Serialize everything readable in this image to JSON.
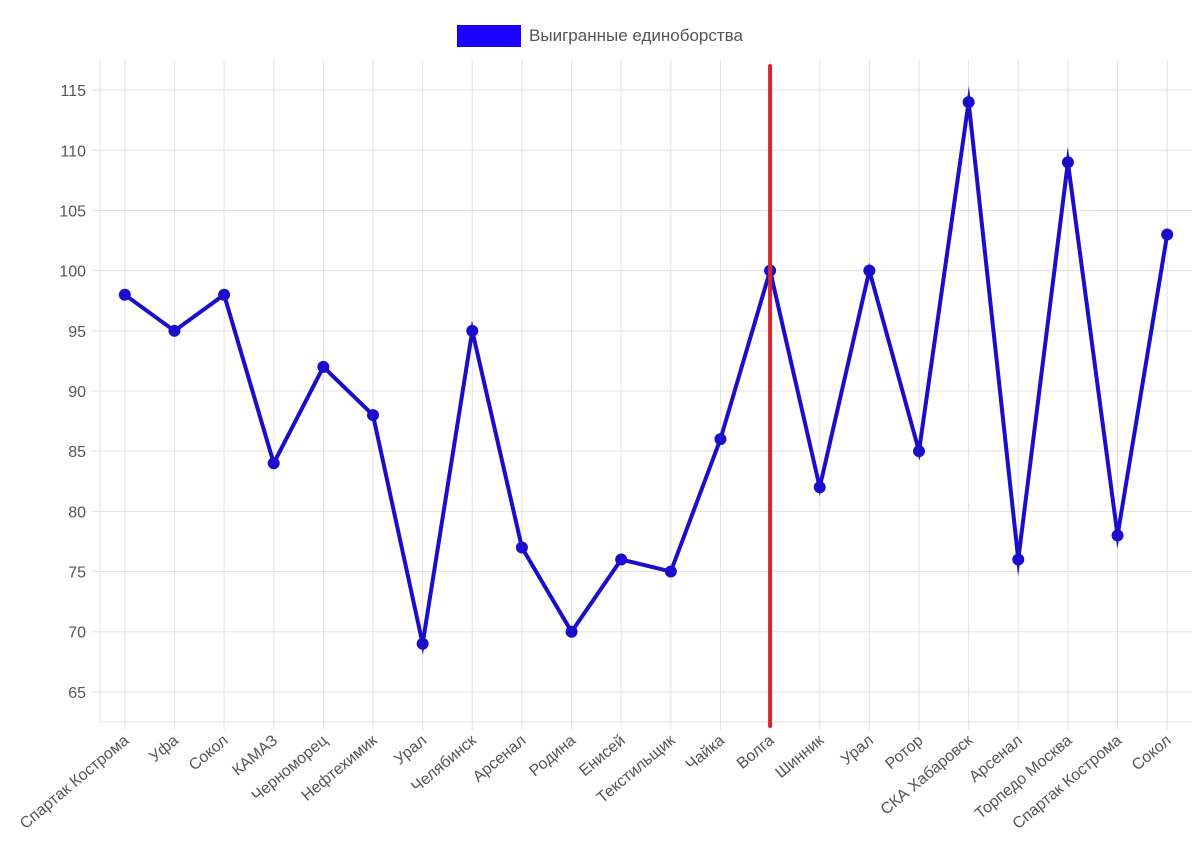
{
  "chart_data": {
    "type": "line",
    "categories": [
      "Спартак Кострома",
      "Уфа",
      "Сокол",
      "КАМАЗ",
      "Черноморец",
      "Нефтехимик",
      "Урал",
      "Челябинск",
      "Арсенал",
      "Родина",
      "Енисей",
      "Текстильщик",
      "Чайка",
      "Волга",
      "Шинник",
      "Урал",
      "Ротор",
      "СКА Хабаровск",
      "Арсенал",
      "Торпедо Москва",
      "Спартак Кострома",
      "Сокол"
    ],
    "series": [
      {
        "name": "Выигранные единоборства",
        "values": [
          98,
          95,
          98,
          84,
          92,
          88,
          69,
          95,
          77,
          70,
          76,
          75,
          86,
          100,
          82,
          100,
          85,
          114,
          76,
          109,
          78,
          103
        ]
      }
    ],
    "ylim": [
      62.5,
      117.5
    ],
    "yticks": [
      65,
      70,
      75,
      80,
      85,
      90,
      95,
      100,
      105,
      110,
      115
    ],
    "marker_category_index": 13,
    "legend_position": "top-center",
    "grid": true,
    "colors": {
      "series": "#1a0dcc",
      "legend": "#1a00ff",
      "marker": "#d7262f",
      "grid": "#e3e3e3"
    }
  }
}
